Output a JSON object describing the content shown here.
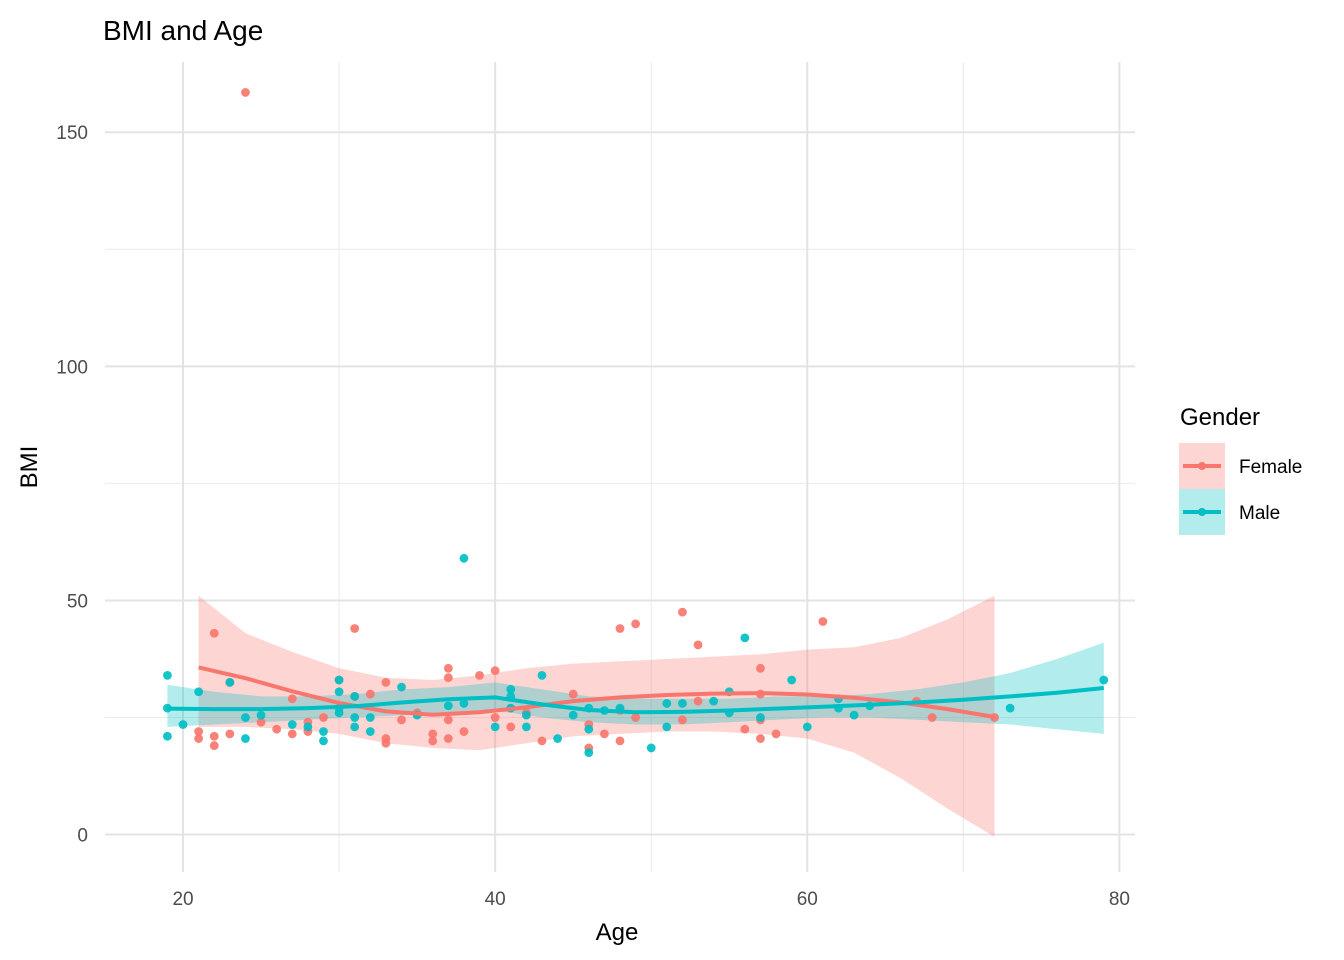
{
  "chart_data": {
    "type": "scatter",
    "title": "BMI and Age",
    "xlabel": "Age",
    "ylabel": "BMI",
    "xlim": [
      15,
      81
    ],
    "ylim": [
      -8,
      165
    ],
    "x_ticks": [
      20,
      40,
      60,
      80
    ],
    "x_minor_ticks": [
      30,
      50,
      70
    ],
    "y_ticks": [
      0,
      50,
      100,
      150
    ],
    "y_minor_ticks": [
      25,
      75,
      125
    ],
    "x_tick_labels": [
      "20",
      "40",
      "60",
      "80"
    ],
    "y_tick_labels": [
      "0",
      "50",
      "100",
      "150"
    ],
    "grid": true,
    "legend": {
      "title": "Gender",
      "position": "right"
    },
    "series": [
      {
        "name": "Female",
        "color": "#F8766D",
        "ribbon_color": "#F8766D",
        "points": [
          [
            21,
            22
          ],
          [
            21,
            20.5
          ],
          [
            22,
            43
          ],
          [
            22,
            21
          ],
          [
            22,
            19
          ],
          [
            23,
            21.5
          ],
          [
            23,
            32.5
          ],
          [
            24,
            158.5
          ],
          [
            25,
            24
          ],
          [
            26,
            22.5
          ],
          [
            27,
            29
          ],
          [
            27,
            21.5
          ],
          [
            28,
            24
          ],
          [
            28,
            22
          ],
          [
            29,
            25
          ],
          [
            30,
            33
          ],
          [
            31,
            44
          ],
          [
            31,
            29.5
          ],
          [
            32,
            30
          ],
          [
            33,
            32.5
          ],
          [
            33,
            19.5
          ],
          [
            33,
            20.5
          ],
          [
            34,
            24.5
          ],
          [
            35,
            26
          ],
          [
            36,
            21.5
          ],
          [
            36,
            20
          ],
          [
            37,
            35.5
          ],
          [
            37,
            33.5
          ],
          [
            37,
            24.5
          ],
          [
            37,
            20.5
          ],
          [
            38,
            22
          ],
          [
            39,
            34
          ],
          [
            40,
            35
          ],
          [
            40,
            25
          ],
          [
            41,
            23
          ],
          [
            42,
            26
          ],
          [
            43,
            20
          ],
          [
            45,
            30
          ],
          [
            46,
            23.5
          ],
          [
            46,
            18.5
          ],
          [
            47,
            21.5
          ],
          [
            48,
            44
          ],
          [
            48,
            20
          ],
          [
            48,
            26.5
          ],
          [
            49,
            45
          ],
          [
            49,
            25
          ],
          [
            52,
            47.5
          ],
          [
            52,
            24.5
          ],
          [
            53,
            40.5
          ],
          [
            53,
            28.5
          ],
          [
            56,
            22.5
          ],
          [
            57,
            35.5
          ],
          [
            57,
            30
          ],
          [
            57,
            24.5
          ],
          [
            57,
            20.5
          ],
          [
            58,
            21.5
          ],
          [
            61,
            45.5
          ],
          [
            67,
            28.5
          ],
          [
            68,
            25
          ],
          [
            72,
            25
          ]
        ],
        "trend": {
          "x": [
            21,
            24,
            27,
            30,
            33,
            36,
            39,
            42,
            45,
            48,
            51,
            54,
            57,
            60,
            63,
            66,
            69,
            72
          ],
          "y": [
            35.7,
            33.4,
            30.6,
            28.1,
            26.3,
            25.6,
            26.1,
            27.2,
            28.5,
            29.3,
            29.8,
            30.1,
            30.2,
            29.9,
            29.2,
            28.2,
            26.8,
            25.1
          ]
        },
        "ribbon": {
          "x": [
            21,
            24,
            27,
            30,
            33,
            36,
            39,
            42,
            45,
            48,
            51,
            54,
            57,
            60,
            63,
            66,
            69,
            72
          ],
          "lower": [
            23,
            23,
            22.5,
            21.5,
            19.5,
            18.5,
            18,
            19.5,
            21,
            21.5,
            22,
            22,
            21.5,
            20.5,
            17.5,
            12,
            5.5,
            -0.5
          ],
          "upper": [
            51,
            43,
            39,
            35.5,
            33.5,
            33,
            34,
            35.5,
            36.5,
            37,
            37.5,
            38,
            38.5,
            39.5,
            40,
            42,
            46,
            51
          ]
        }
      },
      {
        "name": "Male",
        "color": "#00BFC4",
        "ribbon_color": "#00BFC4",
        "points": [
          [
            19,
            34
          ],
          [
            19,
            27
          ],
          [
            19,
            21
          ],
          [
            20,
            23.5
          ],
          [
            21,
            30.5
          ],
          [
            23,
            32.5
          ],
          [
            24,
            25
          ],
          [
            24,
            20.5
          ],
          [
            25,
            25.5
          ],
          [
            27,
            23.5
          ],
          [
            28,
            23
          ],
          [
            29,
            22
          ],
          [
            29,
            20
          ],
          [
            30,
            33
          ],
          [
            30,
            30.5
          ],
          [
            30,
            27
          ],
          [
            30,
            26
          ],
          [
            31,
            29.5
          ],
          [
            31,
            25
          ],
          [
            31,
            23
          ],
          [
            32,
            25
          ],
          [
            32,
            22
          ],
          [
            34,
            31.5
          ],
          [
            35,
            25.5
          ],
          [
            37,
            27.5
          ],
          [
            38,
            59
          ],
          [
            38,
            28
          ],
          [
            40,
            23
          ],
          [
            41,
            31
          ],
          [
            41,
            29.5
          ],
          [
            41,
            27
          ],
          [
            42,
            25.5
          ],
          [
            42,
            23
          ],
          [
            43,
            34
          ],
          [
            44,
            20.5
          ],
          [
            45,
            25.5
          ],
          [
            46,
            27
          ],
          [
            46,
            22.5
          ],
          [
            46,
            17.5
          ],
          [
            47,
            26.5
          ],
          [
            48,
            27
          ],
          [
            50,
            18.5
          ],
          [
            51,
            28
          ],
          [
            51,
            23
          ],
          [
            52,
            28
          ],
          [
            54,
            28.5
          ],
          [
            55,
            30.5
          ],
          [
            55,
            26
          ],
          [
            56,
            42
          ],
          [
            57,
            25
          ],
          [
            59,
            33
          ],
          [
            60,
            23
          ],
          [
            62,
            29
          ],
          [
            62,
            27
          ],
          [
            63,
            25.5
          ],
          [
            64,
            27.5
          ],
          [
            73,
            27
          ],
          [
            79,
            33
          ]
        ],
        "trend": {
          "x": [
            19,
            22,
            25,
            28,
            31,
            34,
            37,
            40,
            43,
            46,
            49,
            52,
            55,
            58,
            61,
            64,
            67,
            70,
            73,
            76,
            79
          ],
          "y": [
            26.9,
            26.8,
            26.8,
            27,
            27.4,
            28.2,
            28.9,
            29.3,
            27.8,
            26.6,
            26.1,
            26.2,
            26.5,
            26.9,
            27.3,
            27.7,
            28.2,
            28.8,
            29.5,
            30.3,
            31.3
          ]
        },
        "ribbon": {
          "x": [
            19,
            22,
            25,
            28,
            31,
            34,
            37,
            40,
            43,
            46,
            49,
            52,
            55,
            58,
            61,
            64,
            67,
            70,
            73,
            76,
            79
          ],
          "lower": [
            23,
            23.5,
            24,
            24.5,
            25,
            25.5,
            26,
            26.5,
            25,
            24,
            23.5,
            23.5,
            24,
            24.5,
            25,
            25,
            24.5,
            24,
            23.5,
            22.5,
            21.5
          ],
          "upper": [
            32,
            30.5,
            29.5,
            29.5,
            30,
            31,
            31.5,
            32.5,
            31,
            29.5,
            29,
            29,
            29,
            29.5,
            29.5,
            30,
            31,
            32.5,
            34.5,
            37.5,
            41
          ]
        }
      }
    ]
  }
}
